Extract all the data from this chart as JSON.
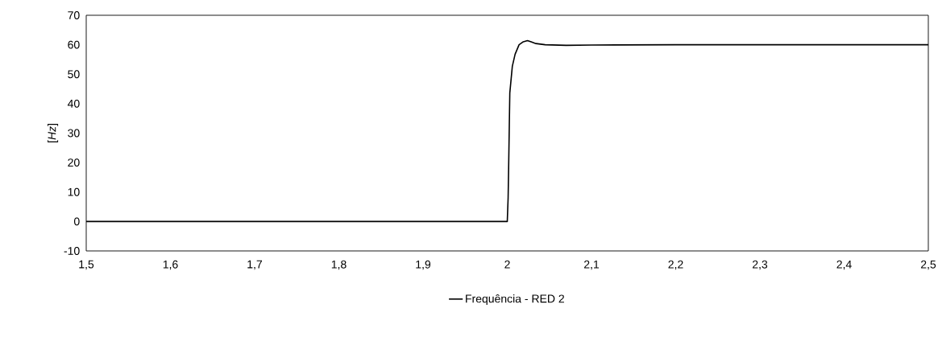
{
  "chart_data": {
    "type": "line",
    "ylabel": "[*Hz*]",
    "series": [
      {
        "name": "Frequência - RED 2",
        "color": "#000000",
        "x": [
          1.5,
          1.9995,
          2.0,
          2.001,
          2.0016,
          2.003,
          2.006,
          2.0093,
          2.014,
          2.019,
          2.024,
          2.029,
          2.034,
          2.045,
          2.07,
          2.1,
          2.2,
          2.5
        ],
        "values": [
          0,
          0,
          0,
          8,
          18,
          43.6,
          52.7,
          56.8,
          60,
          61,
          61.4,
          60.9,
          60.4,
          60,
          59.8,
          59.9,
          60,
          60
        ]
      }
    ],
    "xlim": [
      1.5,
      2.5
    ],
    "ylim": [
      -10,
      70
    ],
    "xticks": [
      {
        "value": 1.5,
        "label": "1,5"
      },
      {
        "value": 1.6,
        "label": "1,6"
      },
      {
        "value": 1.7,
        "label": "1,7"
      },
      {
        "value": 1.8,
        "label": "1,8"
      },
      {
        "value": 1.9,
        "label": "1,9"
      },
      {
        "value": 2,
        "label": "2"
      },
      {
        "value": 2.1,
        "label": "2,1"
      },
      {
        "value": 2.2,
        "label": "2,2"
      },
      {
        "value": 2.3,
        "label": "2,3"
      },
      {
        "value": 2.4,
        "label": "2,4"
      },
      {
        "value": 2.5,
        "label": "2,5"
      }
    ],
    "yticks": [
      -10,
      0,
      10,
      20,
      30,
      40,
      50,
      60,
      70
    ],
    "grid": false,
    "legend": "bottom",
    "marker": "none",
    "line_style": "solid"
  }
}
